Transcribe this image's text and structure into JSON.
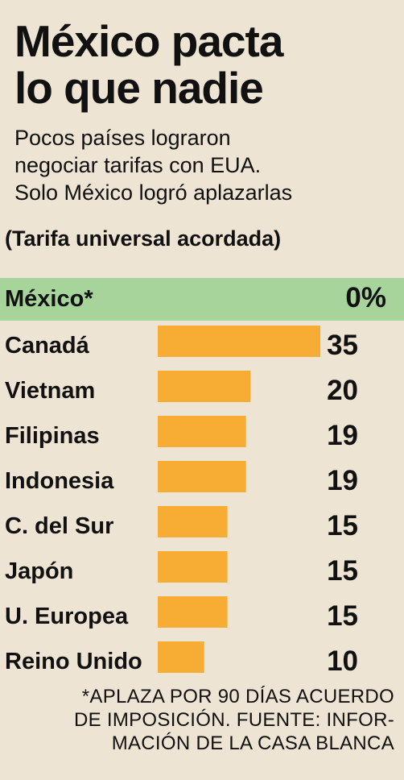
{
  "header": {
    "title_line1": "México pacta",
    "title_line2": "lo que nadie",
    "subtitle_line1": "Pocos países lograron",
    "subtitle_line2": "negociar tarifas con EUA.",
    "subtitle_line3": "Solo México logró aplazarlas",
    "note": "(Tarifa universal acordada)"
  },
  "colors": {
    "background": "#ede4d3",
    "bar": "#f7ac34",
    "highlight": "#a7d49b"
  },
  "chart_data": {
    "type": "bar",
    "orientation": "horizontal",
    "highlight": {
      "category": "México*",
      "value_label": "0%",
      "value": 0
    },
    "categories": [
      "Canadá",
      "Vietnam",
      "Filipinas",
      "Indonesia",
      "C. del Sur",
      "Japón",
      "U. Europea",
      "Reino Unido"
    ],
    "values": [
      35,
      20,
      19,
      19,
      15,
      15,
      15,
      10
    ],
    "xlim": [
      0,
      35
    ],
    "grid": false,
    "legend": "none"
  },
  "footnote": {
    "line1": "*APLAZA POR 90 DÍAS ACUERDO",
    "line2": "DE IMPOSICIÓN. FUENTE: INFOR-",
    "line3": "MACIÓN DE LA CASA BLANCA"
  }
}
